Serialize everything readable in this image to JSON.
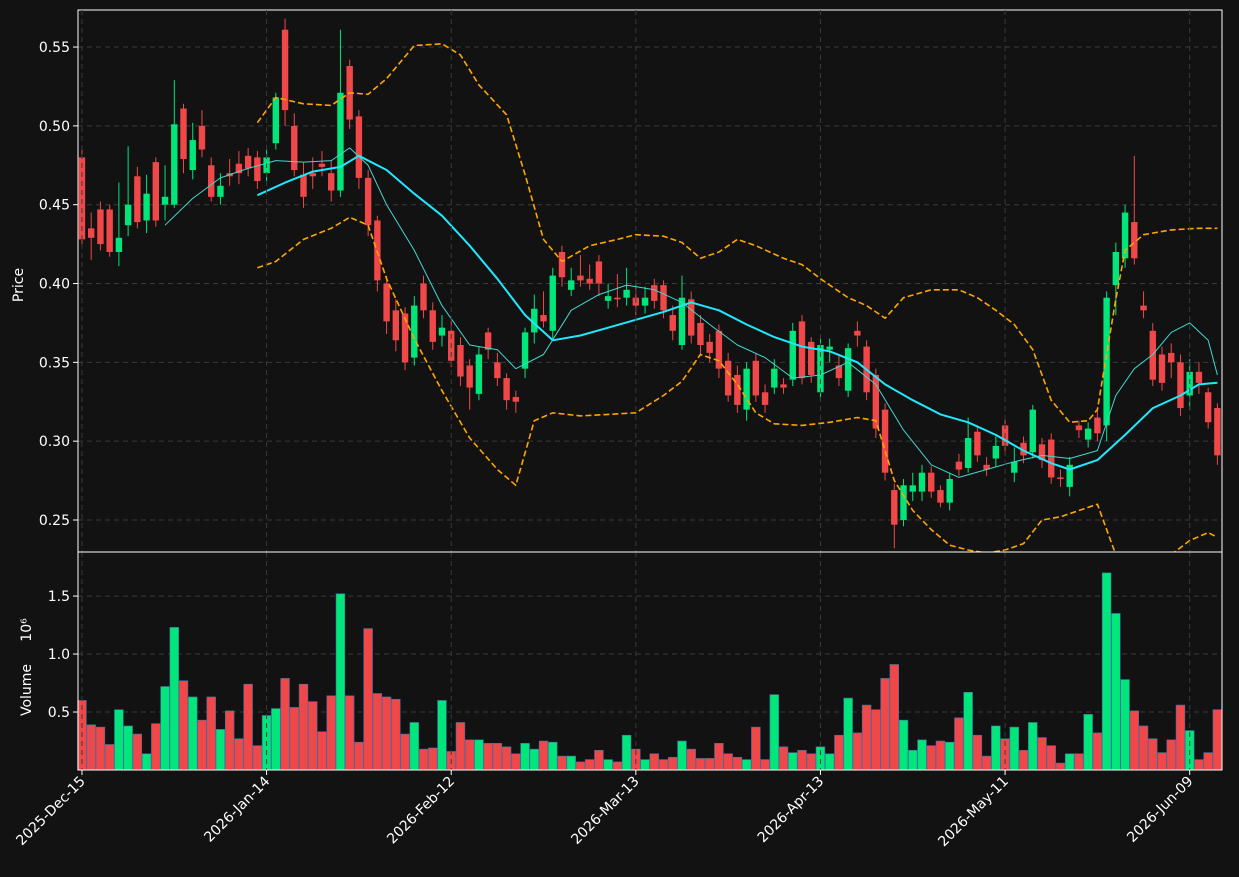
{
  "chart_data": [
    {
      "type": "candlestick",
      "ylabel": "Price",
      "up_color": "#00e67a",
      "down_color": "#f04848",
      "grid": true,
      "xlim": [
        -0.43,
        123.5
      ],
      "ylim": [
        0.2297,
        0.5735
      ],
      "yticks": [
        0.25,
        {
          "value": 0.3,
          "label": "0.30"
        },
        0.35,
        {
          "value": 0.4,
          "label": "0.40"
        },
        0.45,
        {
          "value": 0.5,
          "label": "0.50"
        },
        0.55
      ],
      "open": [
        0.48,
        0.435,
        0.447,
        0.447,
        0.42,
        0.437,
        0.468,
        0.44,
        0.477,
        0.45,
        0.45,
        0.511,
        0.472,
        0.5,
        0.475,
        0.455,
        0.47,
        0.476,
        0.481,
        0.48,
        0.47,
        0.489,
        0.561,
        0.5,
        0.469,
        0.47,
        0.476,
        0.47,
        0.459,
        0.538,
        0.506,
        0.467,
        0.44,
        0.4,
        0.383,
        0.381,
        0.353,
        0.4,
        0.383,
        0.367,
        0.37,
        0.361,
        0.348,
        0.33,
        0.369,
        0.35,
        0.34,
        0.328,
        0.346,
        0.369,
        0.38,
        0.37,
        0.42,
        0.396,
        0.405,
        0.403,
        0.414,
        0.389,
        0.391,
        0.391,
        0.391,
        0.386,
        0.399,
        0.399,
        0.38,
        0.361,
        0.39,
        0.375,
        0.363,
        0.37,
        0.351,
        0.342,
        0.32,
        0.351,
        0.331,
        0.334,
        0.336,
        0.339,
        0.376,
        0.363,
        0.331,
        0.358,
        0.348,
        0.332,
        0.37,
        0.36,
        0.342,
        0.32,
        0.269,
        0.25,
        0.268,
        0.268,
        0.28,
        0.269,
        0.261,
        0.287,
        0.283,
        0.306,
        0.285,
        0.289,
        0.31,
        0.28,
        0.299,
        0.293,
        0.298,
        0.301,
        0.277,
        0.271,
        0.31,
        0.301,
        0.315,
        0.31,
        0.399,
        0.416,
        0.439,
        0.386,
        0.37,
        0.355,
        0.356,
        0.35,
        0.329,
        0.344,
        0.331,
        0.321
      ],
      "high": [
        0.485,
        0.445,
        0.452,
        0.45,
        0.464,
        0.487,
        0.474,
        0.469,
        0.48,
        0.475,
        0.529,
        0.514,
        0.502,
        0.51,
        0.48,
        0.47,
        0.479,
        0.484,
        0.486,
        0.484,
        0.485,
        0.521,
        0.568,
        0.508,
        0.477,
        0.48,
        0.484,
        0.478,
        0.561,
        0.542,
        0.51,
        0.472,
        0.443,
        0.405,
        0.39,
        0.385,
        0.392,
        0.405,
        0.388,
        0.38,
        0.376,
        0.366,
        0.352,
        0.36,
        0.372,
        0.356,
        0.343,
        0.332,
        0.372,
        0.393,
        0.395,
        0.41,
        0.424,
        0.41,
        0.418,
        0.412,
        0.418,
        0.4,
        0.406,
        0.41,
        0.4,
        0.398,
        0.403,
        0.402,
        0.386,
        0.405,
        0.395,
        0.38,
        0.368,
        0.374,
        0.356,
        0.348,
        0.35,
        0.356,
        0.336,
        0.352,
        0.34,
        0.375,
        0.38,
        0.366,
        0.366,
        0.365,
        0.355,
        0.362,
        0.376,
        0.364,
        0.346,
        0.324,
        0.273,
        0.276,
        0.28,
        0.285,
        0.284,
        0.272,
        0.28,
        0.292,
        0.315,
        0.31,
        0.29,
        0.303,
        0.314,
        0.296,
        0.303,
        0.323,
        0.302,
        0.305,
        0.282,
        0.29,
        0.313,
        0.312,
        0.32,
        0.395,
        0.426,
        0.45,
        0.481,
        0.395,
        0.375,
        0.36,
        0.362,
        0.355,
        0.352,
        0.35,
        0.334,
        0.324
      ],
      "low": [
        0.424,
        0.415,
        0.421,
        0.417,
        0.411,
        0.43,
        0.435,
        0.432,
        0.436,
        0.44,
        0.448,
        0.47,
        0.466,
        0.48,
        0.452,
        0.45,
        0.462,
        0.463,
        0.468,
        0.46,
        0.465,
        0.485,
        0.5,
        0.468,
        0.448,
        0.46,
        0.468,
        0.452,
        0.455,
        0.498,
        0.46,
        0.43,
        0.395,
        0.368,
        0.357,
        0.345,
        0.348,
        0.378,
        0.358,
        0.36,
        0.347,
        0.335,
        0.32,
        0.326,
        0.352,
        0.335,
        0.32,
        0.318,
        0.34,
        0.362,
        0.372,
        0.365,
        0.398,
        0.392,
        0.398,
        0.396,
        0.392,
        0.384,
        0.385,
        0.386,
        0.38,
        0.381,
        0.384,
        0.378,
        0.364,
        0.358,
        0.362,
        0.355,
        0.35,
        0.34,
        0.325,
        0.318,
        0.313,
        0.325,
        0.318,
        0.33,
        0.33,
        0.335,
        0.336,
        0.337,
        0.326,
        0.35,
        0.335,
        0.328,
        0.36,
        0.326,
        0.302,
        0.275,
        0.232,
        0.246,
        0.262,
        0.262,
        0.264,
        0.258,
        0.256,
        0.278,
        0.28,
        0.287,
        0.278,
        0.284,
        0.292,
        0.274,
        0.286,
        0.289,
        0.283,
        0.273,
        0.271,
        0.265,
        0.302,
        0.296,
        0.3,
        0.3,
        0.38,
        0.41,
        0.412,
        0.378,
        0.335,
        0.332,
        0.34,
        0.316,
        0.32,
        0.33,
        0.308,
        0.285
      ],
      "close": [
        0.428,
        0.429,
        0.425,
        0.42,
        0.429,
        0.45,
        0.439,
        0.457,
        0.44,
        0.455,
        0.501,
        0.479,
        0.491,
        0.485,
        0.455,
        0.462,
        0.468,
        0.47,
        0.473,
        0.465,
        0.48,
        0.518,
        0.51,
        0.472,
        0.455,
        0.468,
        0.474,
        0.459,
        0.521,
        0.504,
        0.467,
        0.437,
        0.402,
        0.376,
        0.364,
        0.35,
        0.386,
        0.383,
        0.363,
        0.372,
        0.351,
        0.341,
        0.334,
        0.355,
        0.358,
        0.34,
        0.326,
        0.325,
        0.369,
        0.384,
        0.376,
        0.405,
        0.404,
        0.402,
        0.402,
        0.4,
        0.4,
        0.392,
        0.39,
        0.396,
        0.386,
        0.391,
        0.389,
        0.383,
        0.37,
        0.391,
        0.367,
        0.361,
        0.356,
        0.346,
        0.329,
        0.323,
        0.346,
        0.329,
        0.323,
        0.346,
        0.334,
        0.37,
        0.34,
        0.342,
        0.361,
        0.36,
        0.34,
        0.359,
        0.367,
        0.331,
        0.308,
        0.28,
        0.247,
        0.272,
        0.272,
        0.28,
        0.268,
        0.261,
        0.276,
        0.282,
        0.302,
        0.291,
        0.282,
        0.297,
        0.297,
        0.287,
        0.291,
        0.32,
        0.288,
        0.277,
        0.276,
        0.285,
        0.307,
        0.308,
        0.305,
        0.391,
        0.42,
        0.445,
        0.416,
        0.383,
        0.339,
        0.337,
        0.35,
        0.321,
        0.344,
        0.337,
        0.312,
        0.291
      ],
      "series": [
        {
          "color": "#20e8ff",
          "width": 2,
          "dash": false,
          "x": [
            19,
            22,
            25,
            28,
            30,
            33,
            36,
            39,
            42,
            45,
            48,
            51,
            54,
            57,
            60,
            63,
            66,
            69,
            72,
            75,
            78,
            81,
            84,
            87,
            90,
            93,
            96,
            99,
            102,
            105,
            107,
            110,
            113,
            116,
            119,
            121,
            123
          ],
          "values": [
            0.456,
            0.464,
            0.471,
            0.474,
            0.481,
            0.472,
            0.457,
            0.443,
            0.424,
            0.403,
            0.38,
            0.364,
            0.367,
            0.372,
            0.377,
            0.382,
            0.388,
            0.383,
            0.374,
            0.366,
            0.36,
            0.357,
            0.35,
            0.336,
            0.326,
            0.317,
            0.312,
            0.304,
            0.294,
            0.286,
            0.282,
            0.288,
            0.304,
            0.321,
            0.329,
            0.336,
            0.337
          ]
        },
        {
          "color": "#40d8d0",
          "width": 1,
          "dash": false,
          "x": [
            9,
            12,
            15,
            18,
            21,
            24,
            27,
            29,
            31,
            33,
            36,
            39,
            42,
            45,
            47,
            50,
            53,
            56,
            59,
            62,
            65,
            68,
            71,
            74,
            77,
            80,
            83,
            86,
            89,
            92,
            95,
            98,
            101,
            104,
            107,
            110,
            112,
            114,
            116,
            118,
            120,
            122,
            123
          ],
          "values": [
            0.437,
            0.454,
            0.467,
            0.473,
            0.478,
            0.477,
            0.478,
            0.486,
            0.475,
            0.45,
            0.421,
            0.386,
            0.361,
            0.358,
            0.346,
            0.355,
            0.383,
            0.393,
            0.399,
            0.396,
            0.388,
            0.374,
            0.361,
            0.353,
            0.34,
            0.342,
            0.35,
            0.336,
            0.307,
            0.285,
            0.277,
            0.282,
            0.287,
            0.291,
            0.289,
            0.294,
            0.329,
            0.346,
            0.355,
            0.369,
            0.375,
            0.364,
            0.342
          ]
        },
        {
          "color": "#ffa500",
          "width": 1.6,
          "dash": true,
          "x": [
            19,
            21,
            24,
            27,
            29,
            31,
            33,
            36,
            39,
            41,
            43,
            46,
            48,
            50,
            52,
            55,
            58,
            60,
            63,
            65,
            67,
            69,
            71,
            73,
            76,
            78,
            80,
            83,
            85,
            87,
            89,
            92,
            95,
            97,
            99,
            101,
            103,
            105,
            107,
            109,
            110,
            112,
            113,
            115,
            118,
            121,
            123
          ],
          "values": [
            0.502,
            0.518,
            0.514,
            0.513,
            0.521,
            0.52,
            0.53,
            0.551,
            0.552,
            0.545,
            0.526,
            0.507,
            0.469,
            0.428,
            0.414,
            0.424,
            0.428,
            0.431,
            0.43,
            0.426,
            0.416,
            0.42,
            0.428,
            0.424,
            0.416,
            0.412,
            0.403,
            0.391,
            0.386,
            0.378,
            0.391,
            0.396,
            0.396,
            0.391,
            0.383,
            0.374,
            0.358,
            0.326,
            0.312,
            0.313,
            0.32,
            0.39,
            0.421,
            0.431,
            0.434,
            0.435,
            0.435
          ]
        },
        {
          "color": "#ffa500",
          "width": 1.6,
          "dash": true,
          "x": [
            19,
            21,
            24,
            27,
            29,
            31,
            33,
            36,
            39,
            42,
            45,
            47,
            49,
            51,
            54,
            57,
            60,
            63,
            65,
            67,
            69,
            71,
            73,
            75,
            78,
            81,
            84,
            86,
            88,
            90,
            92,
            94,
            96,
            98,
            100,
            102,
            104,
            106,
            108,
            110,
            112,
            114,
            116,
            118,
            120,
            122,
            123
          ],
          "values": [
            0.41,
            0.414,
            0.428,
            0.435,
            0.442,
            0.437,
            0.403,
            0.365,
            0.332,
            0.302,
            0.282,
            0.272,
            0.313,
            0.318,
            0.316,
            0.317,
            0.318,
            0.329,
            0.338,
            0.355,
            0.351,
            0.336,
            0.318,
            0.311,
            0.31,
            0.312,
            0.315,
            0.313,
            0.275,
            0.256,
            0.244,
            0.234,
            0.231,
            0.229,
            0.231,
            0.235,
            0.25,
            0.252,
            0.256,
            0.26,
            0.228,
            0.215,
            0.218,
            0.228,
            0.237,
            0.242,
            0.239
          ]
        }
      ]
    },
    {
      "type": "bar",
      "ylabel": "Volume",
      "offset_label": "10⁶",
      "grid": true,
      "xlim": [
        -0.43,
        123.5
      ],
      "ylim": [
        0,
        1.88
      ],
      "yticks": [
        0.5,
        {
          "value": 1,
          "label": "1.0"
        },
        1.5
      ],
      "categories": [
        "2025-Dec-15",
        null,
        null,
        null,
        null,
        null,
        null,
        null,
        null,
        null,
        null,
        null,
        null,
        null,
        null,
        null,
        null,
        null,
        null,
        null,
        "2026-Jan-14",
        null,
        null,
        null,
        null,
        null,
        null,
        null,
        null,
        null,
        null,
        null,
        null,
        null,
        null,
        null,
        null,
        null,
        null,
        null,
        "2026-Feb-12",
        null,
        null,
        null,
        null,
        null,
        null,
        null,
        null,
        null,
        null,
        null,
        null,
        null,
        null,
        null,
        null,
        null,
        null,
        null,
        "2026-Mar-13",
        null,
        null,
        null,
        null,
        null,
        null,
        null,
        null,
        null,
        null,
        null,
        null,
        null,
        null,
        null,
        null,
        null,
        null,
        null,
        "2026-Apr-13",
        null,
        null,
        null,
        null,
        null,
        null,
        null,
        null,
        null,
        null,
        null,
        null,
        null,
        null,
        null,
        null,
        null,
        null,
        null,
        "2026-May-11",
        null,
        null,
        null,
        null,
        null,
        null,
        null,
        null,
        null,
        null,
        null,
        null,
        null,
        null,
        null,
        null,
        null,
        null,
        null,
        "2026-Jun-09",
        null,
        null,
        null
      ],
      "values": [
        0.6,
        0.39,
        0.37,
        0.22,
        0.52,
        0.38,
        0.31,
        0.14,
        0.4,
        0.72,
        1.23,
        0.77,
        0.63,
        0.43,
        0.63,
        0.35,
        0.51,
        0.27,
        0.74,
        0.21,
        0.47,
        0.53,
        0.79,
        0.54,
        0.74,
        0.59,
        0.33,
        0.64,
        1.52,
        0.64,
        0.24,
        1.22,
        0.66,
        0.63,
        0.61,
        0.31,
        0.41,
        0.18,
        0.19,
        0.6,
        0.16,
        0.41,
        0.26,
        0.26,
        0.23,
        0.23,
        0.2,
        0.14,
        0.23,
        0.18,
        0.25,
        0.24,
        0.12,
        0.12,
        0.07,
        0.09,
        0.17,
        0.09,
        0.07,
        0.3,
        0.18,
        0.09,
        0.14,
        0.09,
        0.11,
        0.25,
        0.18,
        0.1,
        0.1,
        0.23,
        0.14,
        0.11,
        0.09,
        0.37,
        0.09,
        0.65,
        0.2,
        0.15,
        0.17,
        0.14,
        0.2,
        0.14,
        0.3,
        0.62,
        0.32,
        0.56,
        0.52,
        0.79,
        0.91,
        0.43,
        0.17,
        0.26,
        0.21,
        0.25,
        0.24,
        0.45,
        0.67,
        0.3,
        0.12,
        0.38,
        0.27,
        0.37,
        0.17,
        0.41,
        0.28,
        0.21,
        0.06,
        0.14,
        0.14,
        0.48,
        0.32,
        1.7,
        1.35,
        0.78,
        0.51,
        0.38,
        0.27,
        0.15,
        0.26,
        0.56,
        0.34,
        0.09,
        0.15,
        0.52
      ]
    }
  ]
}
